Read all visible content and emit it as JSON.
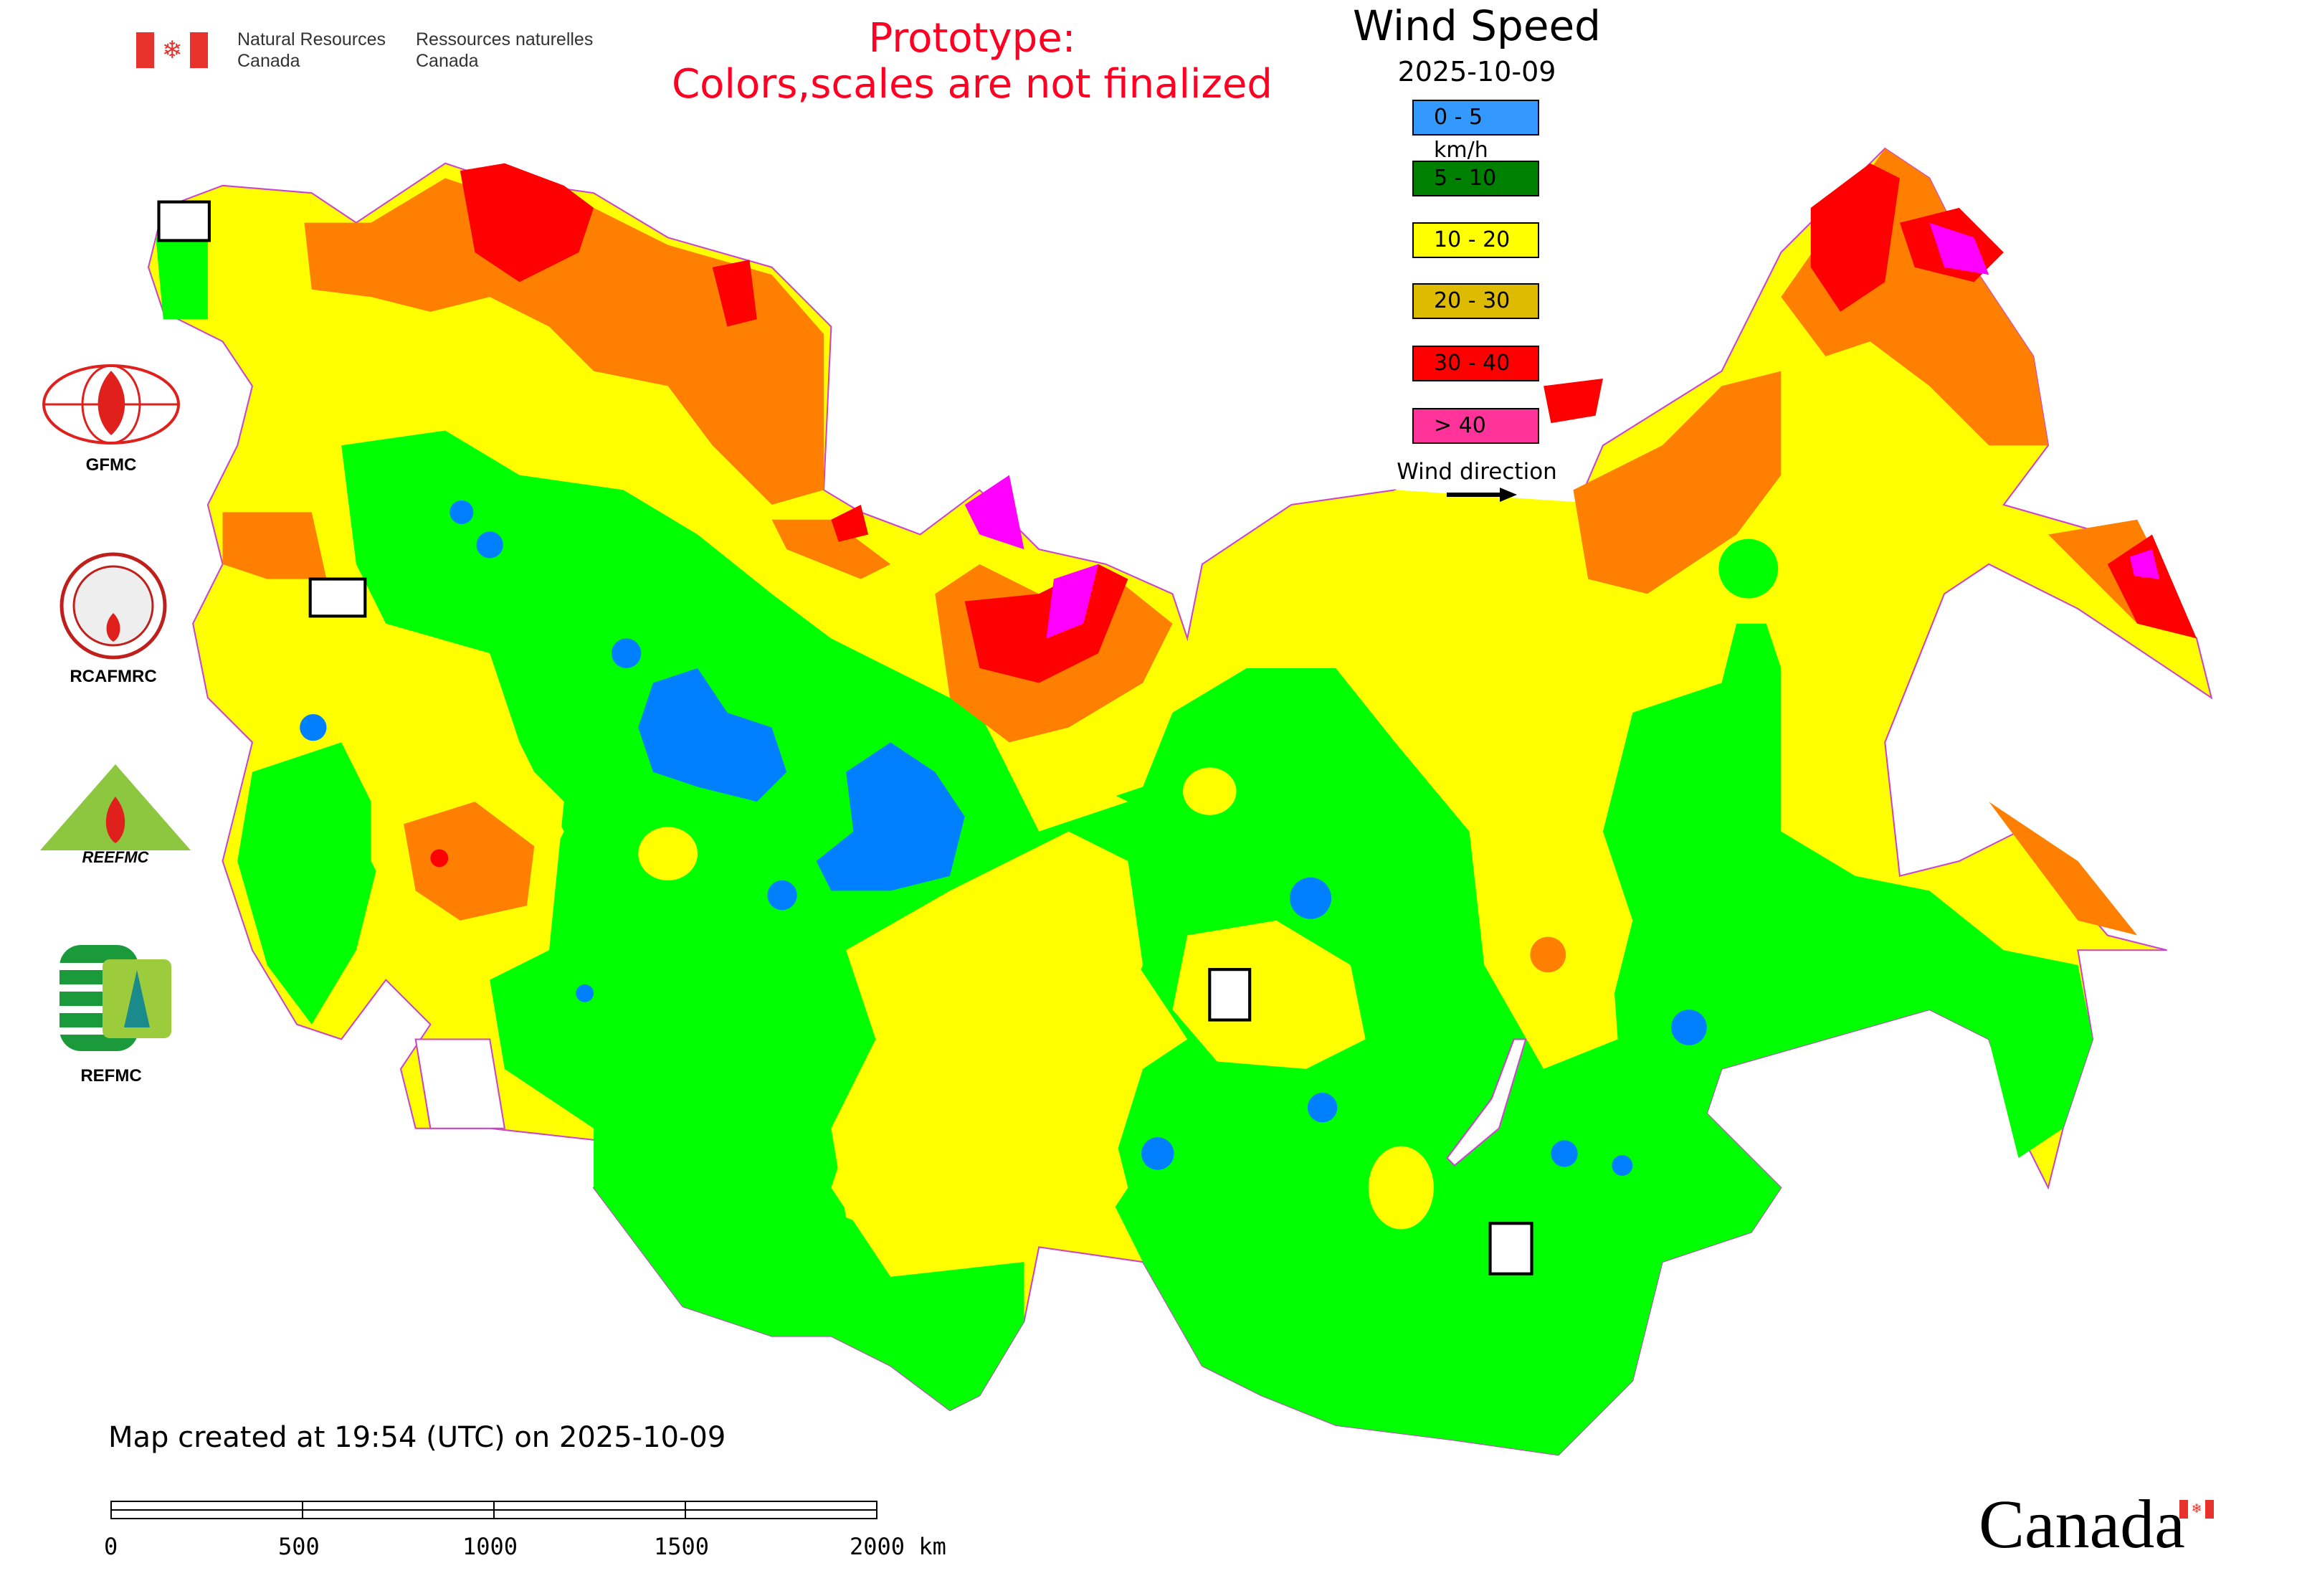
{
  "header": {
    "agency_en": [
      "Natural Resources",
      "Canada"
    ],
    "agency_fr": [
      "Ressources naturelles",
      "Canada"
    ],
    "prototype_notice": [
      "Prototype:",
      "Colors,scales are not finalized"
    ]
  },
  "legend": {
    "title": "Wind Speed",
    "date": "2025-10-09",
    "items": [
      {
        "label": "0 - 5 km/h",
        "color": "#3399ff"
      },
      {
        "label": "5 - 10",
        "color": "#008000"
      },
      {
        "label": "10 - 20",
        "color": "#ffff00"
      },
      {
        "label": "20 - 30",
        "color": "#ddbb00"
      },
      {
        "label": "30 - 40",
        "color": "#ff0000"
      },
      {
        "label": "> 40",
        "color": "#ff3399"
      }
    ],
    "direction_label": "Wind direction"
  },
  "map_colors": {
    "low": "#0080ff",
    "mid": "#00ff00",
    "moderate": "#ffff00",
    "high": "#ff8000",
    "very_high": "#ff0000",
    "extreme": "#ff00ff",
    "border": "#cc44cc"
  },
  "logos": {
    "gfmc": "GFMC",
    "rcafmrc": "RCAFMRC",
    "reefmc": "REEFMC",
    "refmc": "REFMC"
  },
  "footer": {
    "created": "Map created at 19:54 (UTC) on 2025-10-09",
    "scale_labels": [
      "0",
      "500",
      "1000",
      "1500",
      "2000 km"
    ],
    "wordmark": "Canada"
  }
}
